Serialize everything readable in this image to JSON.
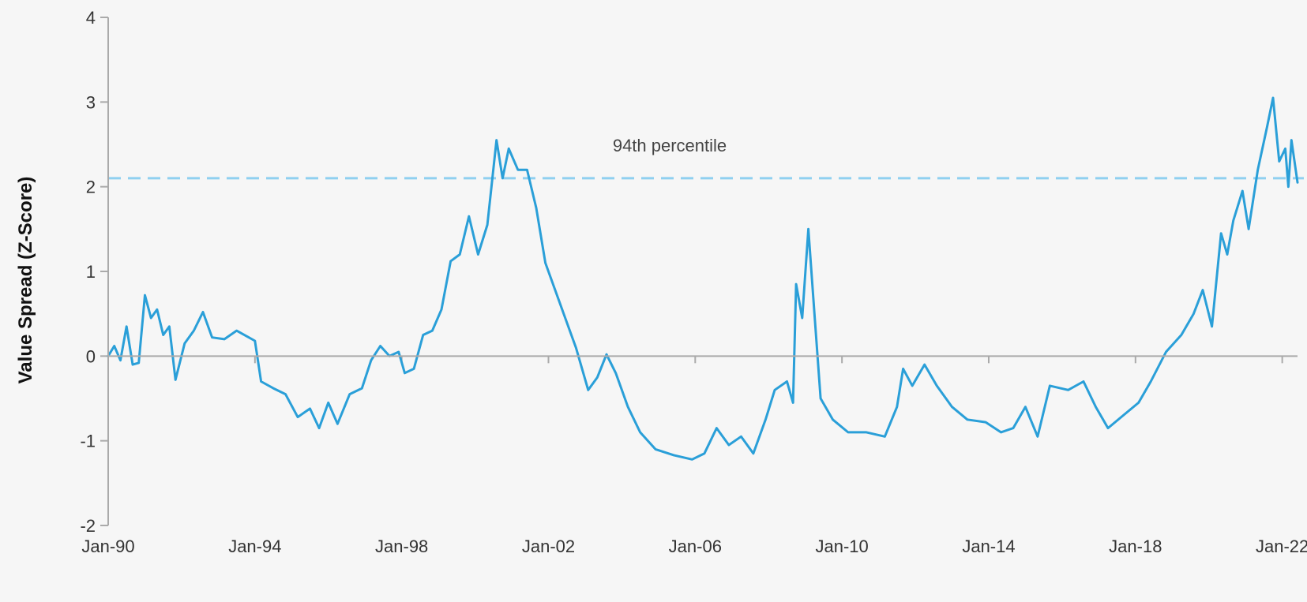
{
  "chart_data": {
    "type": "line",
    "title": "",
    "xlabel": "",
    "ylabel": "Value Spread (Z-Score)",
    "ylim": [
      -2,
      4
    ],
    "y_ticks": [
      4,
      3,
      2,
      1,
      0,
      -1,
      -2
    ],
    "x_tick_labels": [
      "Jan-90",
      "Jan-94",
      "Jan-98",
      "Jan-02",
      "Jan-06",
      "Jan-10",
      "Jan-14",
      "Jan-18",
      "Jan-22"
    ],
    "x_range": [
      "1990-01",
      "2022-06"
    ],
    "grid": false,
    "zero_line": true,
    "reference_line": {
      "label": "94th percentile",
      "value": 2.1,
      "style": "dashed"
    },
    "colors": {
      "series": "#2a9fd8",
      "reference": "#8fd0f0",
      "axis": "#aaaaaa"
    },
    "series": [
      {
        "name": "",
        "points": [
          [
            "1990-01",
            0.0
          ],
          [
            "1990-03",
            0.12
          ],
          [
            "1990-05",
            -0.05
          ],
          [
            "1990-07",
            0.35
          ],
          [
            "1990-09",
            -0.1
          ],
          [
            "1990-11",
            -0.08
          ],
          [
            "1991-01",
            0.72
          ],
          [
            "1991-03",
            0.45
          ],
          [
            "1991-05",
            0.55
          ],
          [
            "1991-07",
            0.25
          ],
          [
            "1991-09",
            0.35
          ],
          [
            "1991-11",
            -0.28
          ],
          [
            "1992-02",
            0.15
          ],
          [
            "1992-05",
            0.3
          ],
          [
            "1992-08",
            0.52
          ],
          [
            "1992-11",
            0.22
          ],
          [
            "1993-03",
            0.2
          ],
          [
            "1993-07",
            0.3
          ],
          [
            "1993-11",
            0.22
          ],
          [
            "1994-01",
            0.18
          ],
          [
            "1994-03",
            -0.3
          ],
          [
            "1994-07",
            -0.38
          ],
          [
            "1994-11",
            -0.45
          ],
          [
            "1995-03",
            -0.72
          ],
          [
            "1995-07",
            -0.62
          ],
          [
            "1995-10",
            -0.85
          ],
          [
            "1996-01",
            -0.55
          ],
          [
            "1996-04",
            -0.8
          ],
          [
            "1996-08",
            -0.45
          ],
          [
            "1996-12",
            -0.38
          ],
          [
            "1997-03",
            -0.05
          ],
          [
            "1997-06",
            0.12
          ],
          [
            "1997-09",
            0.0
          ],
          [
            "1997-12",
            0.05
          ],
          [
            "1998-02",
            -0.2
          ],
          [
            "1998-05",
            -0.15
          ],
          [
            "1998-08",
            0.25
          ],
          [
            "1998-11",
            0.3
          ],
          [
            "1999-02",
            0.55
          ],
          [
            "1999-05",
            1.12
          ],
          [
            "1999-08",
            1.2
          ],
          [
            "1999-11",
            1.65
          ],
          [
            "2000-02",
            1.2
          ],
          [
            "2000-05",
            1.55
          ],
          [
            "2000-08",
            2.55
          ],
          [
            "2000-10",
            2.1
          ],
          [
            "2000-12",
            2.45
          ],
          [
            "2001-03",
            2.2
          ],
          [
            "2001-06",
            2.2
          ],
          [
            "2001-09",
            1.75
          ],
          [
            "2001-12",
            1.1
          ],
          [
            "2002-03",
            0.8
          ],
          [
            "2002-06",
            0.5
          ],
          [
            "2002-10",
            0.1
          ],
          [
            "2003-02",
            -0.4
          ],
          [
            "2003-05",
            -0.25
          ],
          [
            "2003-08",
            0.02
          ],
          [
            "2003-11",
            -0.2
          ],
          [
            "2004-03",
            -0.6
          ],
          [
            "2004-07",
            -0.9
          ],
          [
            "2004-12",
            -1.1
          ],
          [
            "2005-06",
            -1.17
          ],
          [
            "2005-12",
            -1.22
          ],
          [
            "2006-04",
            -1.15
          ],
          [
            "2006-08",
            -0.85
          ],
          [
            "2006-12",
            -1.05
          ],
          [
            "2007-04",
            -0.95
          ],
          [
            "2007-08",
            -1.15
          ],
          [
            "2007-12",
            -0.75
          ],
          [
            "2008-03",
            -0.4
          ],
          [
            "2008-07",
            -0.3
          ],
          [
            "2008-09",
            -0.55
          ],
          [
            "2008-10",
            0.85
          ],
          [
            "2008-12",
            0.45
          ],
          [
            "2009-02",
            1.5
          ],
          [
            "2009-04",
            0.5
          ],
          [
            "2009-06",
            -0.5
          ],
          [
            "2009-10",
            -0.75
          ],
          [
            "2010-03",
            -0.9
          ],
          [
            "2010-09",
            -0.9
          ],
          [
            "2011-03",
            -0.95
          ],
          [
            "2011-07",
            -0.6
          ],
          [
            "2011-09",
            -0.15
          ],
          [
            "2011-12",
            -0.35
          ],
          [
            "2012-04",
            -0.1
          ],
          [
            "2012-08",
            -0.35
          ],
          [
            "2013-01",
            -0.6
          ],
          [
            "2013-06",
            -0.75
          ],
          [
            "2013-12",
            -0.78
          ],
          [
            "2014-05",
            -0.9
          ],
          [
            "2014-09",
            -0.85
          ],
          [
            "2015-01",
            -0.6
          ],
          [
            "2015-05",
            -0.95
          ],
          [
            "2015-09",
            -0.35
          ],
          [
            "2016-03",
            -0.4
          ],
          [
            "2016-08",
            -0.3
          ],
          [
            "2016-12",
            -0.6
          ],
          [
            "2017-04",
            -0.85
          ],
          [
            "2017-09",
            -0.7
          ],
          [
            "2018-02",
            -0.55
          ],
          [
            "2018-06",
            -0.3
          ],
          [
            "2018-11",
            0.05
          ],
          [
            "2019-04",
            0.25
          ],
          [
            "2019-08",
            0.5
          ],
          [
            "2019-11",
            0.78
          ],
          [
            "2020-02",
            0.35
          ],
          [
            "2020-05",
            1.45
          ],
          [
            "2020-07",
            1.2
          ],
          [
            "2020-09",
            1.6
          ],
          [
            "2020-12",
            1.95
          ],
          [
            "2021-02",
            1.5
          ],
          [
            "2021-05",
            2.2
          ],
          [
            "2021-08",
            2.7
          ],
          [
            "2021-10",
            3.05
          ],
          [
            "2021-12",
            2.3
          ],
          [
            "2022-02",
            2.45
          ],
          [
            "2022-03",
            2.0
          ],
          [
            "2022-04",
            2.55
          ],
          [
            "2022-06",
            2.05
          ]
        ]
      }
    ]
  }
}
